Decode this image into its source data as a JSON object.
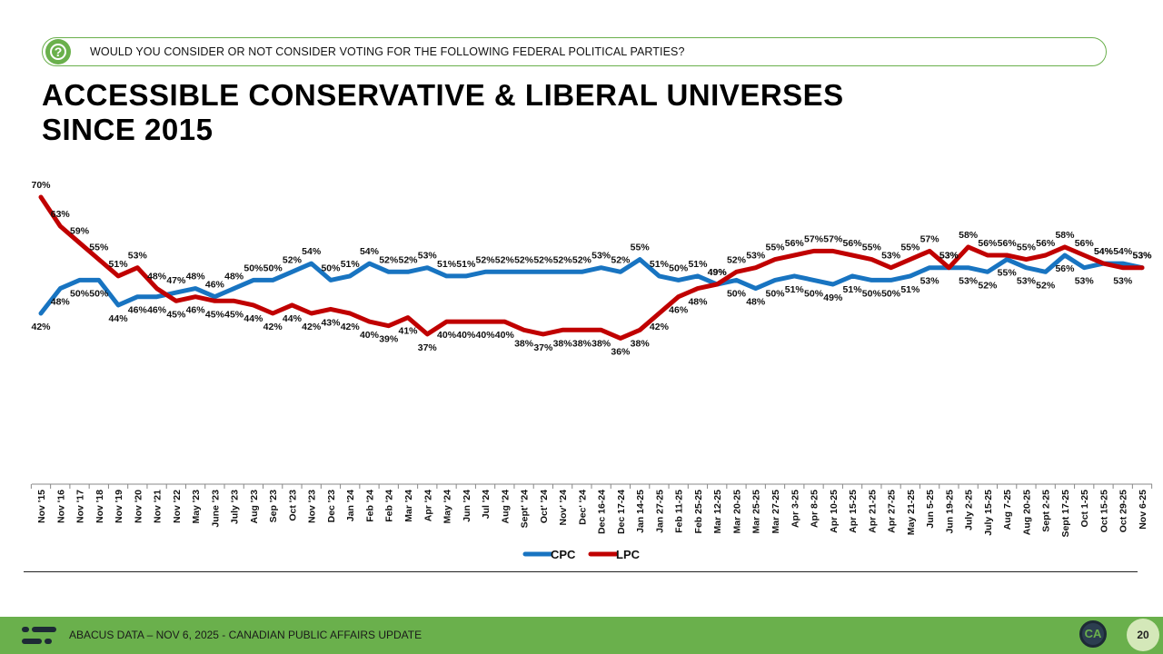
{
  "header": {
    "question_icon": "question-mark-icon",
    "question_glyph": "?",
    "question": "WOULD YOU CONSIDER OR NOT CONSIDER VOTING FOR THE FOLLOWING FEDERAL POLITICAL PARTIES?",
    "title_line1": "ACCESSIBLE CONSERVATIVE & LIBERAL UNIVERSES",
    "title_line2": "SINCE 2015"
  },
  "chart_data": {
    "type": "line",
    "title": "ACCESSIBLE CONSERVATIVE & LIBERAL UNIVERSES SINCE 2015",
    "xlabel": "",
    "ylabel": "",
    "ylim": [
      20,
      80
    ],
    "grid": false,
    "legend": "bottom",
    "categories": [
      "Nov '15",
      "Nov '16",
      "Nov '17",
      "Nov '18",
      "Nov '19",
      "Nov '20",
      "Nov '21",
      "Nov '22",
      "May '23",
      "June '23",
      "July '23",
      "Aug '23",
      "Sep '23",
      "Oct '23",
      "Nov '23",
      "Dec '23",
      "Jan '24",
      "Feb '24",
      "Feb '24",
      "Mar '24",
      "Apr '24",
      "May '24",
      "Jun '24",
      "Jul '24",
      "Aug '24",
      "Sept' '24",
      "Oct' '24",
      "Nov' '24",
      "Dec' '24",
      "Dec 16-24",
      "Dec 17-24",
      "Jan 14-25",
      "Jan 27-25",
      "Feb 11-25",
      "Feb 25-25",
      "Mar 12-25",
      "Mar 20-25",
      "Mar 25-25",
      "Mar 27-25",
      "Apr 3-25",
      "Apr 8-25",
      "Apr 10-25",
      "Apr 15-25",
      "Apr 21-25",
      "Apr 27-25",
      "May 21-25",
      "Jun 5-25",
      "Jun 19-25",
      "July 2-25",
      "July 15-25",
      "Aug 7-25",
      "Aug 20-25",
      "Sept 2-25",
      "Sept 17-25",
      "Oct 1-25",
      "Oct 15-25",
      "Oct 29-25",
      "Nov 6-25"
    ],
    "series": [
      {
        "name": "CPC",
        "color": "#1874c1",
        "values": [
          42,
          48,
          50,
          50,
          44,
          46,
          46,
          47,
          48,
          46,
          48,
          50,
          50,
          52,
          54,
          50,
          51,
          54,
          52,
          52,
          53,
          51,
          51,
          52,
          52,
          52,
          52,
          52,
          52,
          53,
          52,
          55,
          51,
          50,
          51,
          49,
          50,
          48,
          50,
          51,
          50,
          49,
          51,
          50,
          50,
          51,
          53,
          53,
          53,
          52,
          55,
          53,
          52,
          56,
          53,
          54,
          54,
          53
        ]
      },
      {
        "name": "LPC",
        "color": "#c00000",
        "values": [
          70,
          63,
          59,
          55,
          51,
          53,
          48,
          45,
          46,
          45,
          45,
          44,
          42,
          44,
          42,
          43,
          42,
          40,
          39,
          41,
          37,
          40,
          40,
          40,
          40,
          38,
          37,
          38,
          38,
          38,
          36,
          38,
          42,
          46,
          48,
          49,
          52,
          53,
          55,
          56,
          57,
          57,
          56,
          55,
          53,
          55,
          57,
          53,
          58,
          56,
          56,
          55,
          56,
          58,
          56,
          54,
          53,
          53
        ]
      }
    ],
    "labels_display": {
      "CPC": [
        "42%",
        "48%",
        "50%",
        "50%",
        "44%",
        "46%",
        "46%",
        "47%",
        "48%",
        "46%",
        "48%",
        "50%",
        "50%",
        "52%",
        "54%",
        "50%",
        "51%",
        "54%",
        "52%",
        "52%",
        "53%",
        "51%",
        "51%",
        "52%",
        "52%",
        "52%",
        "52%",
        "52%",
        "52%",
        "53%",
        "52%",
        "55%",
        "51%",
        "50%",
        "51%",
        "49%",
        "50%",
        "48%",
        "50%",
        "51%",
        "50%",
        "49%",
        "51%",
        "50%",
        "50%",
        "51%",
        "53%",
        "53%",
        "53%",
        "52%",
        "55%",
        "53%",
        "52%",
        "56%",
        "53%",
        "54%",
        "54%",
        "53%"
      ],
      "LPC": [
        "70%",
        "63%",
        "59%",
        "55%",
        "51%",
        "53%",
        "48%",
        "45%",
        "46%",
        "45%",
        "45%",
        "44%",
        "42%",
        "44%",
        "42%",
        "43%",
        "42%",
        "40%",
        "39%",
        "41%",
        "37%",
        "40%",
        "40%",
        "40%",
        "40%",
        "38%",
        "37%",
        "38%",
        "38%",
        "38%",
        "36%",
        "38%",
        "42%",
        "46%",
        "48%",
        "49%",
        "52%",
        "53%",
        "55%",
        "56%",
        "57%",
        "57%",
        "56%",
        "55%",
        "53%",
        "55%",
        "57%",
        "53%",
        "58%",
        "56%",
        "56%",
        "55%",
        "56%",
        "58%",
        "56%",
        "54%",
        "53%",
        "53%"
      ]
    }
  },
  "footer": {
    "logo_icon": "abacus-logo-icon",
    "text": "ABACUS DATA – NOV 6, 2025 - CANADIAN PUBLIC AFFAIRS UPDATE",
    "badge": "CA",
    "page_number": "20"
  }
}
